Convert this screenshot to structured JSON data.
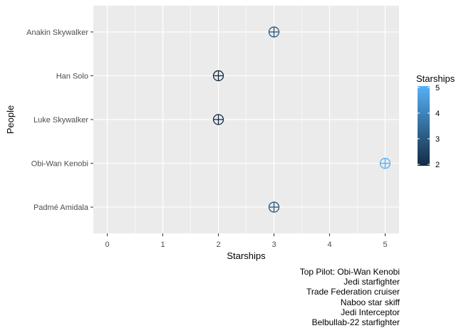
{
  "chart_data": {
    "type": "scatter",
    "title": "",
    "xlabel": "Starships",
    "ylabel": "People",
    "xlim": [
      -0.25,
      5.25
    ],
    "xticks": [
      0,
      1,
      2,
      3,
      4,
      5
    ],
    "categories": [
      "Anakin Skywalker",
      "Han Solo",
      "Luke Skywalker",
      "Obi-Wan Kenobi",
      "Padmé Amidala"
    ],
    "values": [
      3,
      2,
      2,
      5,
      3
    ],
    "grid": true,
    "marker": "circle-plus",
    "legend": {
      "title": "Starships",
      "position": "right",
      "type": "colorbar",
      "range": [
        2,
        5
      ],
      "ticks": [
        2,
        3,
        4,
        5
      ],
      "low_color": "#132B43",
      "high_color": "#56B1F7"
    },
    "panel_background": "#EBEBEB",
    "gridline_color": "#FFFFFF"
  },
  "caption": {
    "lines": [
      "Top Pilot: Obi-Wan Kenobi",
      "Jedi starfighter",
      "Trade Federation cruiser",
      "Naboo star skiff",
      "Jedi Interceptor",
      "Belbullab-22 starfighter"
    ]
  }
}
